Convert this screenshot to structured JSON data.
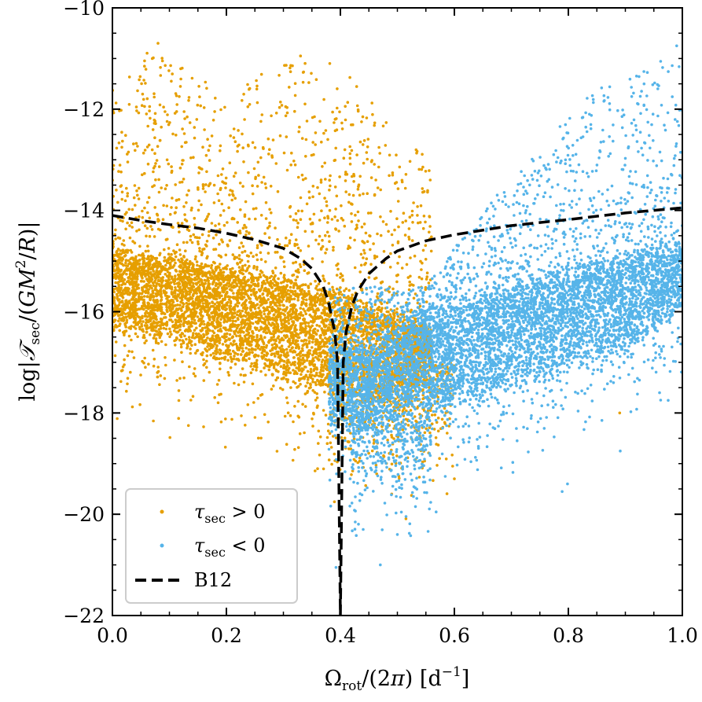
{
  "chart_data": {
    "type": "scatter",
    "xlabel": "Ωrot/(2π) [d−1]",
    "ylabel": "log|𝒯sec/(GM²/R)|",
    "xlim": [
      0.0,
      1.0
    ],
    "ylim": [
      -22,
      -10
    ],
    "x_ticks": [
      "0.0",
      "0.2",
      "0.4",
      "0.6",
      "0.8",
      "1.0"
    ],
    "y_ticks": [
      "−10",
      "−12",
      "−14",
      "−16",
      "−18",
      "−20",
      "−22"
    ],
    "x_tick_values": [
      0.0,
      0.2,
      0.4,
      0.6,
      0.8,
      1.0
    ],
    "y_tick_values": [
      -10,
      -12,
      -14,
      -16,
      -18,
      -20,
      -22
    ],
    "grid": false,
    "legend_position": "bottom-left",
    "series": [
      {
        "name": "τsec > 0",
        "kind": "scatter",
        "color": "#E69F00",
        "main_band": {
          "x_range": [
            0.0,
            0.56
          ],
          "lower_edge": [
            [
              0.0,
              -16.3
            ],
            [
              0.1,
              -16.55
            ],
            [
              0.2,
              -16.95
            ],
            [
              0.3,
              -17.3
            ],
            [
              0.4,
              -17.7
            ],
            [
              0.45,
              -17.9
            ],
            [
              0.5,
              -17.6
            ],
            [
              0.56,
              -17.2
            ]
          ],
          "upper_edge": [
            [
              0.0,
              -14.8
            ],
            [
              0.1,
              -15.0
            ],
            [
              0.2,
              -15.2
            ],
            [
              0.3,
              -15.4
            ],
            [
              0.4,
              -15.7
            ],
            [
              0.45,
              -15.9
            ],
            [
              0.5,
              -16.1
            ],
            [
              0.56,
              -16.4
            ]
          ]
        },
        "scatter_extent": {
          "x_range": [
            0.0,
            0.56
          ],
          "upper_envelope": [
            [
              0.0,
              -11.5
            ],
            [
              0.08,
              -10.7
            ],
            [
              0.2,
              -11.8
            ],
            [
              0.3,
              -11.0
            ],
            [
              0.35,
              -10.9
            ],
            [
              0.42,
              -11.3
            ],
            [
              0.5,
              -12.5
            ],
            [
              0.56,
              -13.0
            ]
          ]
        },
        "notable_points": [
          [
            0.08,
            -10.7
          ],
          [
            0.33,
            -10.95
          ],
          [
            0.36,
            -19.1
          ],
          [
            0.49,
            -19.6
          ],
          [
            0.6,
            -19.3
          ],
          [
            0.89,
            -18.0
          ]
        ]
      },
      {
        "name": "τsec < 0",
        "kind": "scatter",
        "color": "#56B4E9",
        "main_band": {
          "x_range": [
            0.38,
            1.0
          ],
          "lower_edge": [
            [
              0.45,
              -18.3
            ],
            [
              0.5,
              -18.0
            ],
            [
              0.6,
              -17.8
            ],
            [
              0.7,
              -17.5
            ],
            [
              0.8,
              -17.1
            ],
            [
              0.9,
              -16.7
            ],
            [
              1.0,
              -16.0
            ]
          ],
          "upper_edge": [
            [
              0.45,
              -16.8
            ],
            [
              0.5,
              -16.4
            ],
            [
              0.6,
              -16.0
            ],
            [
              0.7,
              -15.6
            ],
            [
              0.8,
              -15.2
            ],
            [
              0.9,
              -14.9
            ],
            [
              1.0,
              -14.7
            ]
          ]
        },
        "scatter_extent": {
          "x_range": [
            0.38,
            1.0
          ],
          "upper_envelope": [
            [
              0.55,
              -15.5
            ],
            [
              0.65,
              -14.0
            ],
            [
              0.75,
              -12.8
            ],
            [
              0.85,
              -11.5
            ],
            [
              0.9,
              -11.4
            ],
            [
              1.0,
              -10.8
            ]
          ]
        },
        "notable_points": [
          [
            0.99,
            -10.75
          ],
          [
            0.47,
            -21.0
          ],
          [
            0.44,
            -20.3
          ],
          [
            0.5,
            -20.4
          ]
        ]
      },
      {
        "name": "B12",
        "kind": "line",
        "style": "dashed",
        "color": "#000000",
        "x": [
          0.0,
          0.05,
          0.1,
          0.15,
          0.2,
          0.25,
          0.3,
          0.33,
          0.35,
          0.37,
          0.38,
          0.39,
          0.395,
          0.4,
          0.405,
          0.41,
          0.42,
          0.43,
          0.45,
          0.48,
          0.5,
          0.55,
          0.6,
          0.7,
          0.8,
          0.9,
          1.0
        ],
        "y": [
          -14.1,
          -14.2,
          -14.28,
          -14.35,
          -14.45,
          -14.58,
          -14.75,
          -14.95,
          -15.15,
          -15.5,
          -15.85,
          -16.4,
          -17.0,
          -22.0,
          -17.0,
          -16.4,
          -15.9,
          -15.6,
          -15.25,
          -14.95,
          -14.8,
          -14.6,
          -14.48,
          -14.3,
          -14.18,
          -14.05,
          -13.95
        ]
      }
    ],
    "legend": [
      {
        "label_main": "τ",
        "label_sub": "sec",
        "label_rest": " > 0",
        "marker": "dot",
        "color": "#E69F00"
      },
      {
        "label_main": "τ",
        "label_sub": "sec",
        "label_rest": " < 0",
        "marker": "dot",
        "color": "#56B4E9"
      },
      {
        "label_main": "B12",
        "label_sub": "",
        "label_rest": "",
        "marker": "dash",
        "color": "#000000"
      }
    ]
  }
}
